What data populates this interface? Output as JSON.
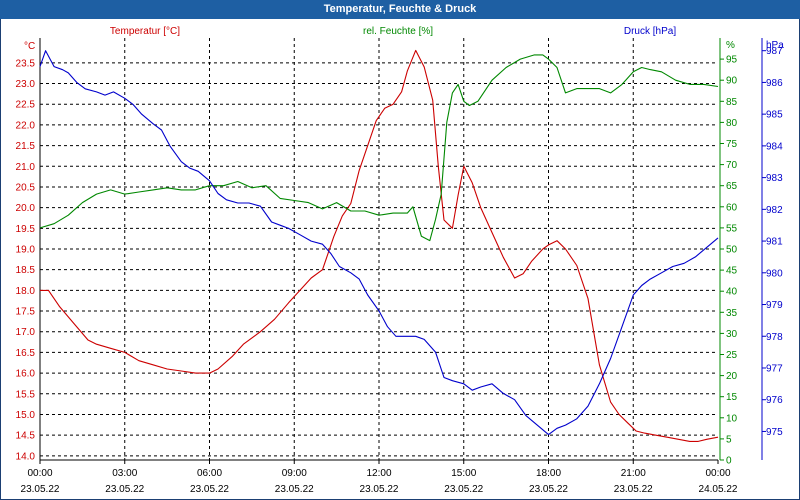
{
  "window": {
    "title": "Temperatur, Feuchte & Druck"
  },
  "colors": {
    "temperature": "#cc0000",
    "humidity": "#008800",
    "pressure": "#0000cc",
    "titlebar": "#1e5fa3",
    "grid": "#000000"
  },
  "chart_data": {
    "type": "line",
    "title": "Temperatur, Feuchte & Druck",
    "grid": true,
    "axes": {
      "left": {
        "unit": "°C",
        "label": "Temperatur [°C]",
        "range": [
          13.9,
          24.1
        ],
        "ticks": [
          "23.5",
          "23.0",
          "22.5",
          "22.0",
          "21.5",
          "21.0",
          "20.5",
          "20.0",
          "19.5",
          "19.0",
          "18.5",
          "18.0",
          "17.5",
          "17.0",
          "16.5",
          "16.0",
          "15.5",
          "15.0",
          "14.5",
          "14.0"
        ]
      },
      "middle": {
        "unit": "%",
        "label": "rel. Feuchte [%]",
        "range": [
          0,
          100
        ],
        "ticks": [
          "95",
          "90",
          "85",
          "80",
          "75",
          "70",
          "65",
          "60",
          "55",
          "50",
          "45",
          "40",
          "35",
          "30",
          "25",
          "20",
          "15",
          "10",
          "5",
          "0"
        ]
      },
      "right": {
        "unit": "hPa",
        "label": "Druck [hPa]",
        "range": [
          974.1,
          987.4
        ],
        "ticks": [
          "987",
          "986",
          "985",
          "984",
          "983",
          "982",
          "981",
          "980",
          "979",
          "978",
          "977",
          "976",
          "975"
        ]
      },
      "x": {
        "ticks": [
          {
            "time": "00:00",
            "date": "23.05.22"
          },
          {
            "time": "03:00",
            "date": "23.05.22"
          },
          {
            "time": "06:00",
            "date": "23.05.22"
          },
          {
            "time": "09:00",
            "date": "23.05.22"
          },
          {
            "time": "12:00",
            "date": "23.05.22"
          },
          {
            "time": "15:00",
            "date": "23.05.22"
          },
          {
            "time": "18:00",
            "date": "23.05.22"
          },
          {
            "time": "21:00",
            "date": "23.05.22"
          },
          {
            "time": "00:00",
            "date": "24.05.22"
          }
        ]
      }
    },
    "series": [
      {
        "name": "Temperatur [°C]",
        "axis": "left",
        "x": [
          0,
          0.3,
          0.7,
          1.2,
          1.7,
          2.0,
          2.5,
          3.0,
          3.5,
          4.0,
          4.5,
          5.0,
          5.5,
          6.0,
          6.3,
          6.8,
          7.2,
          7.8,
          8.3,
          8.8,
          9.2,
          9.6,
          10.0,
          10.4,
          10.7,
          11.0,
          11.3,
          11.6,
          11.9,
          12.2,
          12.5,
          12.8,
          13.0,
          13.3,
          13.6,
          13.9,
          14.1,
          14.3,
          14.6,
          14.8,
          15.0,
          15.3,
          15.6,
          16.0,
          16.4,
          16.8,
          17.1,
          17.4,
          17.8,
          18.0,
          18.3,
          18.6,
          19.0,
          19.4,
          19.8,
          20.2,
          20.5,
          20.8,
          21.1,
          21.4,
          21.8,
          22.2,
          22.6,
          23.0,
          23.3,
          23.6,
          24.0
        ],
        "values": [
          18.0,
          18.0,
          17.6,
          17.2,
          16.8,
          16.7,
          16.6,
          16.5,
          16.3,
          16.2,
          16.1,
          16.05,
          16.0,
          16.0,
          16.1,
          16.4,
          16.7,
          17.0,
          17.3,
          17.7,
          18.0,
          18.3,
          18.5,
          19.3,
          19.8,
          20.1,
          20.9,
          21.5,
          22.1,
          22.4,
          22.5,
          22.8,
          23.3,
          23.8,
          23.4,
          22.6,
          21.0,
          19.7,
          19.5,
          20.3,
          21.0,
          20.6,
          20.0,
          19.4,
          18.8,
          18.3,
          18.4,
          18.7,
          19.0,
          19.1,
          19.2,
          19.0,
          18.6,
          17.8,
          16.2,
          15.3,
          15.0,
          14.8,
          14.6,
          14.55,
          14.5,
          14.45,
          14.4,
          14.35,
          14.35,
          14.4,
          14.45
        ]
      },
      {
        "name": "rel. Feuchte [%]",
        "axis": "middle",
        "x": [
          0,
          0.5,
          1.0,
          1.5,
          2.0,
          2.5,
          3.0,
          3.5,
          4.0,
          4.5,
          5.0,
          5.5,
          6.0,
          6.5,
          7.0,
          7.5,
          8.0,
          8.5,
          9.0,
          9.5,
          10.0,
          10.5,
          11.0,
          11.5,
          12.0,
          12.5,
          13.0,
          13.2,
          13.5,
          13.8,
          14.0,
          14.2,
          14.4,
          14.6,
          14.8,
          15.0,
          15.2,
          15.5,
          16.0,
          16.5,
          17.0,
          17.5,
          17.8,
          18.0,
          18.3,
          18.6,
          19.0,
          19.4,
          19.8,
          20.2,
          20.6,
          21.0,
          21.3,
          21.6,
          22.0,
          22.5,
          23.0,
          23.5,
          24.0
        ],
        "values": [
          55,
          56,
          58,
          61,
          63,
          64,
          63,
          63.5,
          64,
          64.5,
          64,
          64,
          65,
          65,
          66,
          64.5,
          65,
          62,
          61.5,
          61,
          59.5,
          61,
          59,
          59,
          58,
          58.5,
          58.5,
          60,
          53,
          52,
          57,
          63,
          80,
          87,
          89,
          85,
          84,
          85,
          90,
          93,
          95,
          96,
          96,
          95,
          93,
          87,
          88,
          88,
          88,
          87,
          89,
          92,
          93,
          92.5,
          92,
          90,
          89,
          89,
          88.5
        ]
      },
      {
        "name": "Druck [hPa]",
        "axis": "right",
        "x": [
          0,
          0.2,
          0.5,
          0.8,
          1.0,
          1.3,
          1.6,
          2.0,
          2.3,
          2.6,
          3.0,
          3.3,
          3.6,
          4.0,
          4.3,
          4.6,
          5.0,
          5.3,
          5.6,
          6.0,
          6.3,
          6.6,
          7.0,
          7.4,
          7.8,
          8.2,
          8.5,
          8.8,
          9.2,
          9.6,
          10.0,
          10.3,
          10.6,
          11.0,
          11.3,
          11.6,
          12.0,
          12.3,
          12.6,
          13.0,
          13.3,
          13.6,
          14.0,
          14.3,
          14.6,
          15.0,
          15.3,
          15.6,
          16.0,
          16.4,
          16.8,
          17.2,
          17.6,
          18.0,
          18.3,
          18.6,
          19.0,
          19.4,
          19.8,
          20.2,
          20.6,
          21.0,
          21.3,
          21.6,
          22.0,
          22.4,
          22.8,
          23.2,
          23.6,
          24.0
        ],
        "values": [
          986.5,
          987.0,
          986.5,
          986.4,
          986.3,
          986.0,
          985.8,
          985.7,
          985.6,
          985.7,
          985.5,
          985.3,
          985.0,
          984.7,
          984.5,
          984.0,
          983.5,
          983.3,
          983.2,
          982.9,
          982.5,
          982.3,
          982.2,
          982.2,
          982.1,
          981.6,
          981.5,
          981.4,
          981.2,
          981.0,
          980.9,
          980.6,
          980.2,
          980.0,
          979.8,
          979.3,
          978.8,
          978.3,
          978.0,
          978.0,
          978.0,
          977.9,
          977.5,
          976.7,
          976.6,
          976.5,
          976.3,
          976.4,
          976.5,
          976.2,
          976.0,
          975.5,
          975.2,
          974.9,
          975.1,
          975.2,
          975.4,
          975.8,
          976.5,
          977.3,
          978.3,
          979.3,
          979.6,
          979.8,
          980.0,
          980.2,
          980.3,
          980.5,
          980.8,
          981.1
        ]
      }
    ]
  }
}
